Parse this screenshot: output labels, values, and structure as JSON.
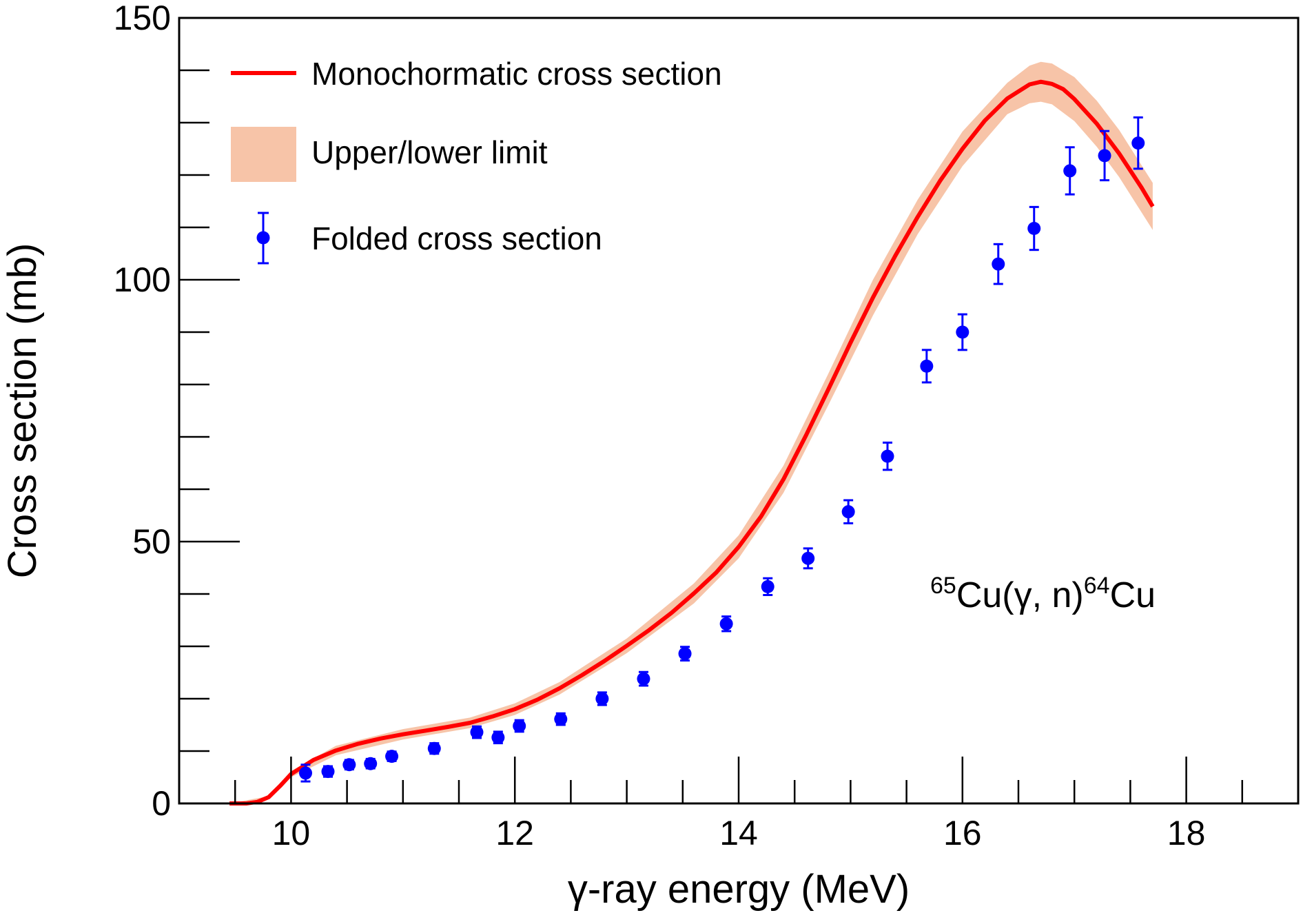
{
  "chart_data": {
    "type": "line",
    "xlabel": "γ-ray energy (MeV)",
    "ylabel": "Cross section (mb)",
    "xlim": [
      9,
      19
    ],
    "ylim": [
      0,
      150
    ],
    "x_ticks": [
      10,
      12,
      14,
      16,
      18
    ],
    "y_ticks": [
      0,
      50,
      100,
      150
    ],
    "grid": false,
    "legend_position": "top-left",
    "annotation": {
      "parts": [
        {
          "text": "65",
          "sup": true
        },
        {
          "text": "Cu(γ, n)",
          "sup": false
        },
        {
          "text": "64",
          "sup": true
        },
        {
          "text": "Cu",
          "sup": false
        }
      ]
    },
    "series": [
      {
        "name": "Monochormatic cross section",
        "type": "line",
        "color": "#ff0000",
        "x": [
          9.45,
          9.6,
          9.7,
          9.8,
          9.9,
          10.0,
          10.2,
          10.4,
          10.6,
          10.8,
          11.0,
          11.2,
          11.4,
          11.6,
          11.8,
          12.0,
          12.2,
          12.4,
          12.6,
          12.8,
          13.0,
          13.2,
          13.4,
          13.6,
          13.8,
          14.0,
          14.2,
          14.4,
          14.6,
          14.8,
          15.0,
          15.2,
          15.4,
          15.6,
          15.8,
          16.0,
          16.2,
          16.4,
          16.6,
          16.7,
          16.8,
          16.9,
          17.0,
          17.2,
          17.4,
          17.6,
          17.7
        ],
        "y": [
          0,
          0,
          0.3,
          1.2,
          3.3,
          5.6,
          8.3,
          10.1,
          11.4,
          12.4,
          13.2,
          13.9,
          14.6,
          15.4,
          16.6,
          18.0,
          19.8,
          22.0,
          24.5,
          27.2,
          30.1,
          33.1,
          36.4,
          40.1,
          44.1,
          49.0,
          54.8,
          61.9,
          70.2,
          79.0,
          88.0,
          96.6,
          104.6,
          112.0,
          118.9,
          125.0,
          130.4,
          134.6,
          137.3,
          137.8,
          137.4,
          136.4,
          134.5,
          129.8,
          124.1,
          117.6,
          114.0
        ]
      },
      {
        "name": "Upper/lower limit",
        "type": "band",
        "color": "#f7c4a8",
        "x": [
          9.45,
          9.8,
          10.0,
          10.4,
          11.0,
          11.6,
          12.0,
          12.4,
          13.0,
          13.6,
          14.0,
          14.4,
          14.8,
          15.2,
          15.6,
          16.0,
          16.4,
          16.6,
          16.7,
          16.8,
          17.0,
          17.2,
          17.4,
          17.7
        ],
        "upper": [
          0,
          1.4,
          6.2,
          11.0,
          14.2,
          16.4,
          19.1,
          23.2,
          31.5,
          42.0,
          51.2,
          64.5,
          82.0,
          100.0,
          115.3,
          128.3,
          137.6,
          140.9,
          141.6,
          141.3,
          138.7,
          134.2,
          128.6,
          118.5
        ],
        "lower": [
          0,
          1.0,
          5.0,
          9.2,
          12.2,
          14.4,
          16.9,
          20.8,
          28.7,
          38.2,
          46.8,
          59.3,
          76.0,
          93.2,
          108.7,
          121.7,
          131.6,
          133.7,
          134.0,
          133.5,
          130.3,
          125.4,
          119.6,
          109.5
        ]
      },
      {
        "name": "Folded cross section",
        "type": "scatter",
        "color": "#0000ff",
        "x": [
          10.13,
          10.33,
          10.52,
          10.71,
          10.9,
          11.28,
          11.66,
          11.85,
          12.04,
          12.41,
          12.78,
          13.15,
          13.52,
          13.89,
          14.26,
          14.62,
          14.98,
          15.33,
          15.68,
          16.0,
          16.32,
          16.64,
          16.96,
          17.27,
          17.57
        ],
        "y": [
          5.8,
          6.1,
          7.4,
          7.6,
          9.0,
          10.5,
          13.6,
          12.6,
          14.8,
          16.1,
          20.0,
          23.8,
          28.6,
          34.3,
          41.4,
          46.8,
          55.7,
          66.3,
          83.5,
          90.0,
          103.0,
          109.8,
          120.8,
          123.7,
          126.1
        ],
        "error": [
          1.6,
          1.0,
          0.9,
          0.9,
          0.9,
          1.0,
          1.1,
          1.1,
          1.1,
          1.1,
          1.2,
          1.3,
          1.3,
          1.4,
          1.6,
          1.9,
          2.2,
          2.6,
          3.1,
          3.4,
          3.8,
          4.1,
          4.5,
          4.7,
          4.9
        ]
      }
    ]
  }
}
